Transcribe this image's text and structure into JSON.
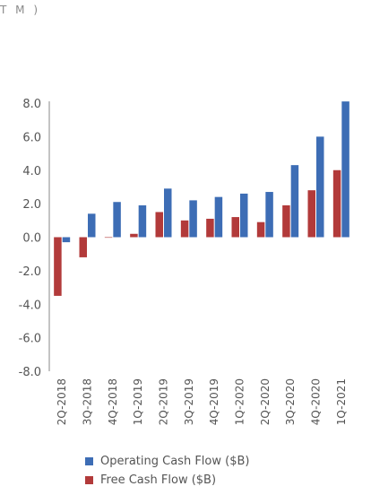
{
  "header": {
    "text": "T M )"
  },
  "chart_data": {
    "type": "bar",
    "categories": [
      "2Q-2018",
      "3Q-2018",
      "4Q-2018",
      "1Q-2019",
      "2Q-2019",
      "3Q-2019",
      "4Q-2019",
      "1Q-2020",
      "2Q-2020",
      "3Q-2020",
      "4Q-2020",
      "1Q-2021"
    ],
    "series": [
      {
        "name": "Operating Cash Flow ($B)",
        "color": "#3d6db5",
        "values": [
          -0.3,
          1.4,
          2.1,
          1.9,
          2.9,
          2.2,
          2.4,
          2.6,
          2.7,
          4.3,
          6.0,
          8.1
        ]
      },
      {
        "name": "Free Cash Flow ($B)",
        "color": "#b23a3a",
        "values": [
          -3.5,
          -1.2,
          0.0,
          0.2,
          1.5,
          1.0,
          1.1,
          1.2,
          0.9,
          1.9,
          2.8,
          4.0
        ]
      }
    ],
    "yticks": [
      "8.0",
      "6.0",
      "4.0",
      "2.0",
      "0.0",
      "-2.0",
      "-4.0",
      "-6.0",
      "-8.0"
    ],
    "ylim": [
      -8,
      8
    ],
    "grid": false,
    "legend_position": "bottom"
  }
}
